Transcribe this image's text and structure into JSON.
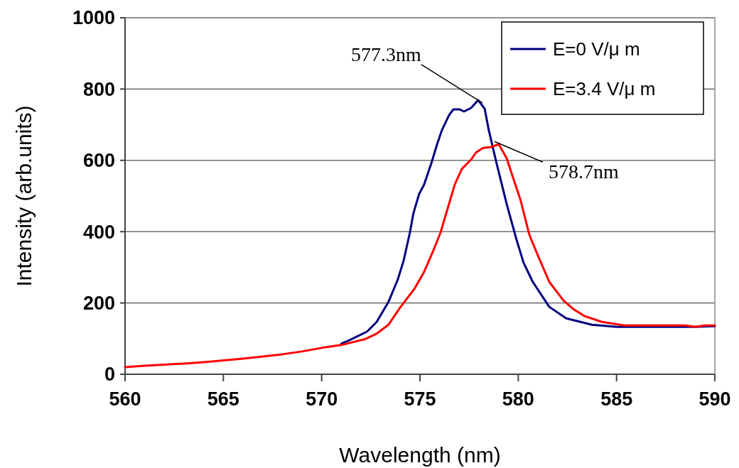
{
  "chart_data": {
    "type": "line",
    "xlabel": "Wavelength (nm)",
    "ylabel": "Intensity (arb.units)",
    "xlim": [
      560,
      590
    ],
    "xticks": [
      560,
      565,
      570,
      575,
      580,
      585,
      590
    ],
    "ylim": [
      0,
      1000
    ],
    "yticks": [
      0,
      200,
      400,
      600,
      800,
      1000
    ],
    "grid": "y",
    "legend": "top right",
    "marker": "none",
    "line_style": "solid",
    "series": [
      {
        "name": "E=0 V/μ m",
        "color": "#000080",
        "x": [
          571,
          571.35,
          572.32,
          572.8,
          573.4,
          573.88,
          574.17,
          574.49,
          574.67,
          574.96,
          575.21,
          575.58,
          575.87,
          576.12,
          576.48,
          576.7,
          577.02,
          577.24,
          577.6,
          577.96,
          578.29,
          578.5,
          578.87,
          579.41,
          579.91,
          580.27,
          580.74,
          581.58,
          582.44,
          583.74,
          585,
          587,
          589,
          590
        ],
        "values": [
          86,
          94,
          120,
          147,
          203,
          267,
          319,
          398,
          452,
          506,
          532,
          592,
          645,
          685,
          727,
          743,
          743,
          737,
          747,
          769,
          745,
          685,
          598,
          478,
          378,
          313,
          259,
          189,
          157,
          139,
          133,
          133,
          133,
          135
        ]
      },
      {
        "name": "E=3.4 V/μ m",
        "color": "#ff0000",
        "x": [
          560,
          561,
          562,
          563,
          564,
          565,
          566,
          567,
          568,
          569,
          570,
          571,
          572.18,
          572.8,
          573.4,
          573.99,
          574.71,
          575.21,
          575.68,
          576.05,
          576.48,
          576.77,
          577.13,
          577.6,
          577.85,
          578.21,
          578.58,
          579.01,
          579.41,
          579.77,
          580.13,
          580.56,
          581,
          581.58,
          582.3,
          582.8,
          583.38,
          584.25,
          585.4,
          587,
          588.5,
          589,
          589.5,
          590
        ],
        "values": [
          20,
          24,
          27,
          30,
          34,
          39,
          44,
          50,
          56,
          64,
          74,
          82,
          98,
          114,
          139,
          187,
          239,
          287,
          347,
          398,
          478,
          532,
          576,
          602,
          622,
          635,
          637,
          645,
          606,
          546,
          486,
          392,
          333,
          259,
          207,
          183,
          163,
          147,
          137,
          137,
          137,
          133,
          137,
          137
        ]
      }
    ],
    "annotations": [
      {
        "text": "577.3nm",
        "x": 577.96,
        "y": 769
      },
      {
        "text": "578.7nm",
        "x": 579.01,
        "y": 645
      }
    ]
  }
}
